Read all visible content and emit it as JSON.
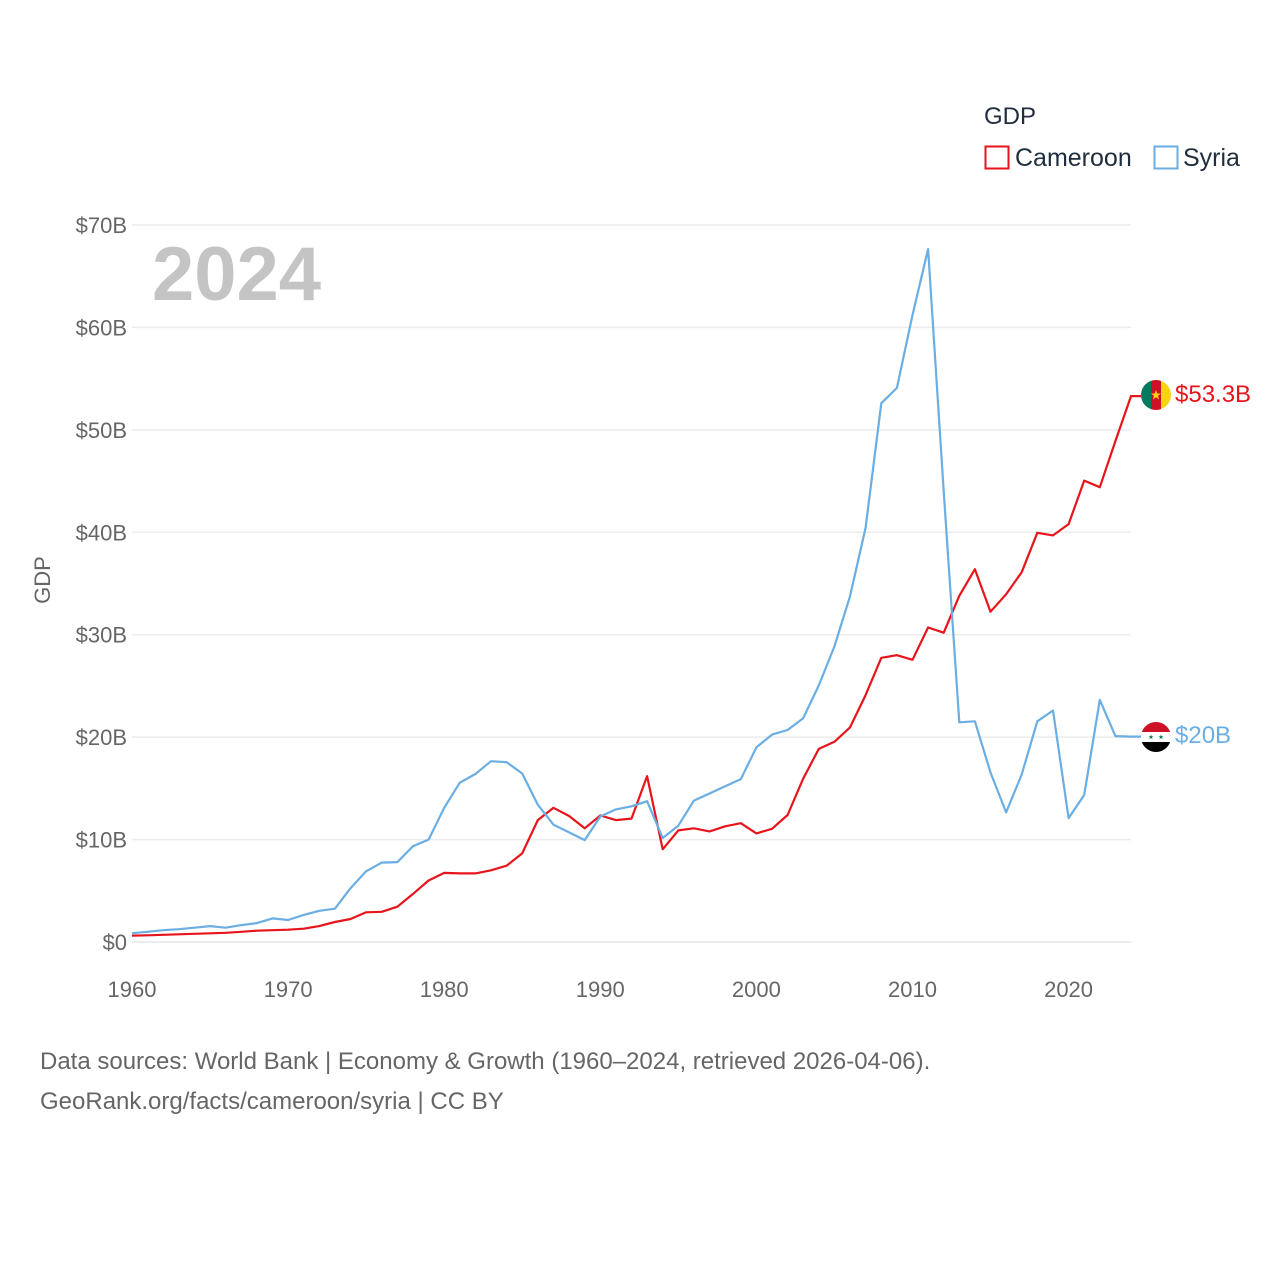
{
  "chart_data": {
    "type": "line",
    "title": "GDP",
    "year_label": "2024",
    "ylabel": "GDP",
    "xlabel": "",
    "xlim": [
      1960,
      2024
    ],
    "ylim": [
      0,
      70
    ],
    "x_ticks": [
      1960,
      1970,
      1980,
      1990,
      2000,
      2010,
      2020
    ],
    "y_ticks": [
      {
        "value": 0,
        "label": "$0"
      },
      {
        "value": 10,
        "label": "$10B"
      },
      {
        "value": 20,
        "label": "$20B"
      },
      {
        "value": 30,
        "label": "$30B"
      },
      {
        "value": 40,
        "label": "$40B"
      },
      {
        "value": 50,
        "label": "$50B"
      },
      {
        "value": 60,
        "label": "$60B"
      },
      {
        "value": 70,
        "label": "$70B"
      }
    ],
    "grid": true,
    "legend_position": "top-right",
    "units": "USD billions",
    "series": [
      {
        "name": "Cameroon",
        "color": "#e8141b",
        "end_label": "$53.3B",
        "x": [
          1960,
          1961,
          1962,
          1963,
          1964,
          1965,
          1966,
          1967,
          1968,
          1969,
          1970,
          1971,
          1972,
          1973,
          1974,
          1975,
          1976,
          1977,
          1978,
          1979,
          1980,
          1981,
          1982,
          1983,
          1984,
          1985,
          1986,
          1987,
          1988,
          1989,
          1990,
          1991,
          1992,
          1993,
          1994,
          1995,
          1996,
          1997,
          1998,
          1999,
          2000,
          2001,
          2002,
          2003,
          2004,
          2005,
          2006,
          2007,
          2008,
          2009,
          2010,
          2011,
          2012,
          2013,
          2014,
          2015,
          2016,
          2017,
          2018,
          2019,
          2020,
          2021,
          2022,
          2023,
          2024
        ],
        "values": [
          0.62,
          0.65,
          0.7,
          0.75,
          0.8,
          0.85,
          0.9,
          1.0,
          1.1,
          1.15,
          1.2,
          1.3,
          1.55,
          1.95,
          2.25,
          2.9,
          2.95,
          3.45,
          4.7,
          6.0,
          6.75,
          6.7,
          6.7,
          7.0,
          7.45,
          8.65,
          11.9,
          13.1,
          12.3,
          11.1,
          12.35,
          11.9,
          12.05,
          16.2,
          9.05,
          10.9,
          11.1,
          10.8,
          11.3,
          11.6,
          10.6,
          11.05,
          12.4,
          15.95,
          18.85,
          19.55,
          20.95,
          24.1,
          27.75,
          28.0,
          27.55,
          30.7,
          30.2,
          33.8,
          36.4,
          32.25,
          33.95,
          36.1,
          39.95,
          39.7,
          40.8,
          45.05,
          44.4,
          48.9,
          53.3
        ]
      },
      {
        "name": "Syria",
        "color": "#6aaee3",
        "end_label": "$20B",
        "x": [
          1960,
          1961,
          1962,
          1963,
          1964,
          1965,
          1966,
          1967,
          1968,
          1969,
          1970,
          1971,
          1972,
          1973,
          1974,
          1975,
          1976,
          1977,
          1978,
          1979,
          1980,
          1981,
          1982,
          1983,
          1984,
          1985,
          1986,
          1987,
          1988,
          1989,
          1990,
          1991,
          1992,
          1993,
          1994,
          1995,
          1996,
          1997,
          1998,
          1999,
          2000,
          2001,
          2002,
          2003,
          2004,
          2005,
          2006,
          2007,
          2008,
          2009,
          2010,
          2011,
          2012,
          2013,
          2014,
          2015,
          2016,
          2017,
          2018,
          2019,
          2020,
          2021,
          2022,
          2023,
          2024
        ],
        "values": [
          0.86,
          1.0,
          1.15,
          1.25,
          1.4,
          1.55,
          1.4,
          1.65,
          1.85,
          2.3,
          2.15,
          2.65,
          3.05,
          3.25,
          5.25,
          6.9,
          7.75,
          7.8,
          9.35,
          10.0,
          13.1,
          15.55,
          16.4,
          17.65,
          17.55,
          16.45,
          13.4,
          11.45,
          10.7,
          9.95,
          12.25,
          12.95,
          13.25,
          13.75,
          10.15,
          11.35,
          13.8,
          14.5,
          15.2,
          15.9,
          19.0,
          20.25,
          20.7,
          21.85,
          25.05,
          28.85,
          33.75,
          40.45,
          52.6,
          54.1,
          61.2,
          67.65,
          44.0,
          21.45,
          21.55,
          16.55,
          12.65,
          16.35,
          21.55,
          22.6,
          12.1,
          14.35,
          23.65,
          20.1,
          20.05
        ]
      }
    ]
  },
  "source": {
    "line1": "Data sources: World Bank | Economy & Growth (1960–2024, retrieved 2026-04-06).",
    "line2": "GeoRank.org/facts/cameroon/syria | CC BY"
  }
}
